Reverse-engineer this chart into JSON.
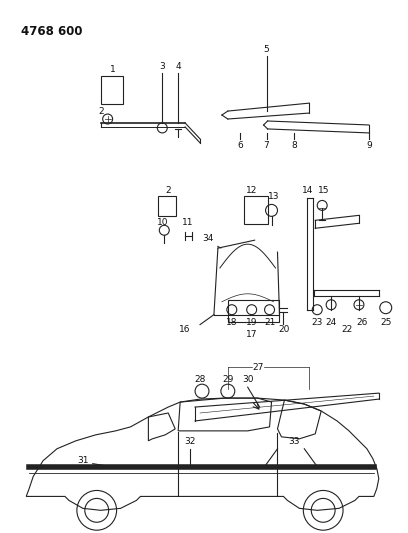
{
  "title": "4768 600",
  "bg_color": "#ffffff",
  "line_color": "#222222",
  "text_color": "#111111",
  "label_fontsize": 6.5,
  "title_fontsize": 8.5,
  "fig_width": 4.08,
  "fig_height": 5.33,
  "dpi": 100
}
